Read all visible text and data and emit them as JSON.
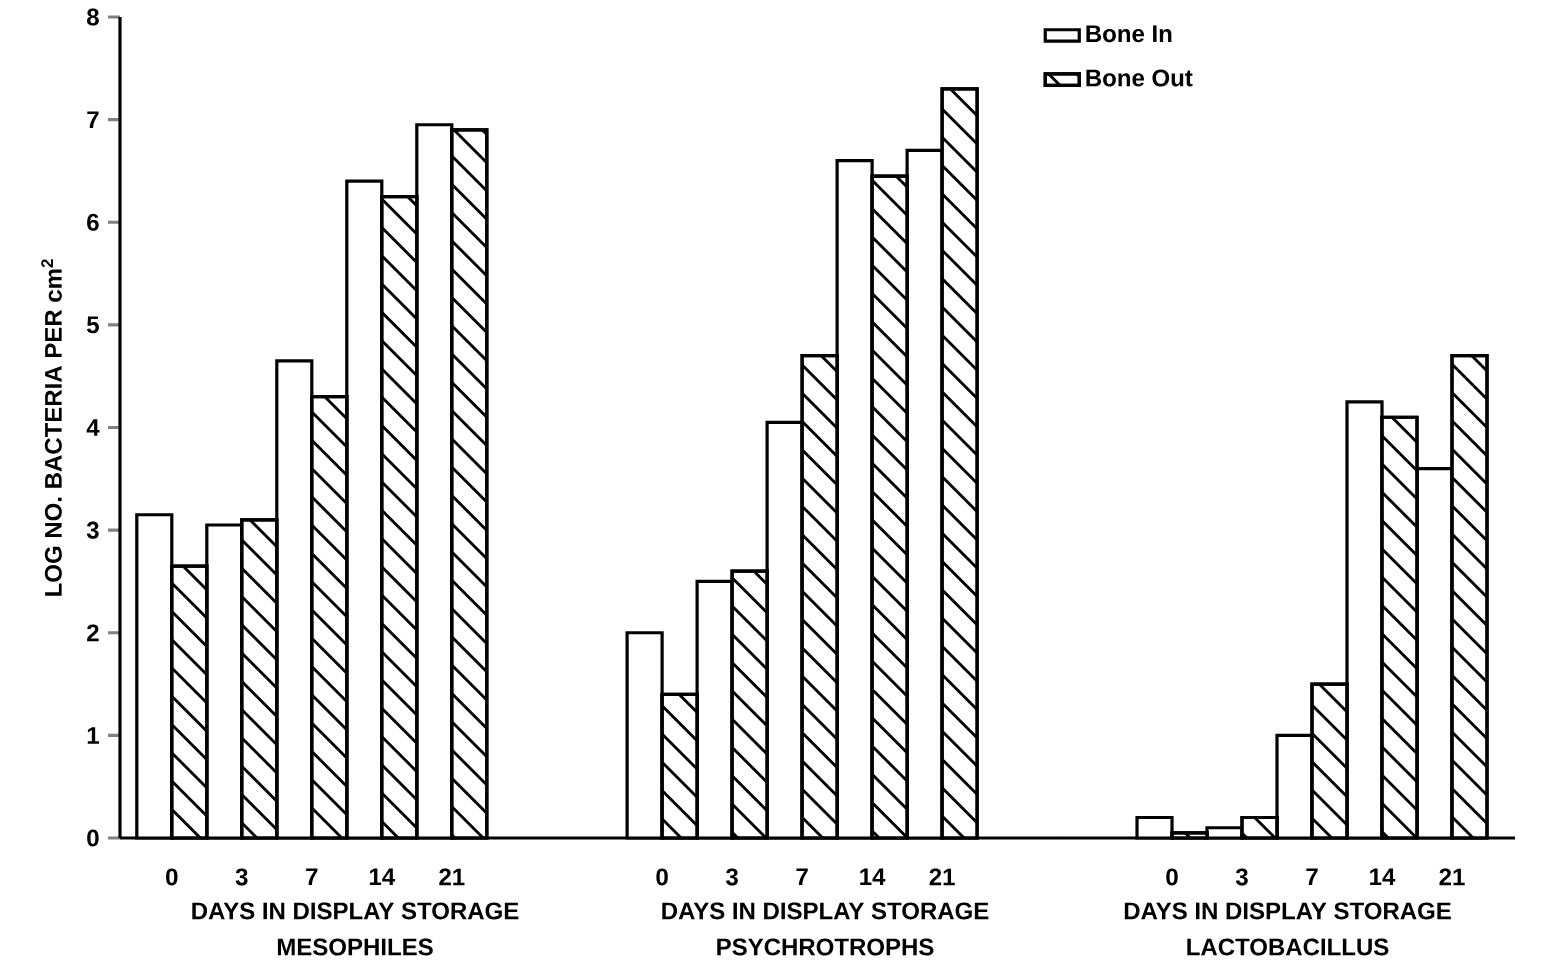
{
  "chart_data": [
    {
      "type": "bar",
      "title": "MESOPHILES",
      "xlabel": "DAYS IN DISPLAY STORAGE",
      "ylabel": "LOG NO. BACTERIA PER cm$^{2}$",
      "categories": [
        "0",
        "3",
        "7",
        "14",
        "21"
      ],
      "ylim": [
        0,
        8
      ],
      "yticks": [
        0,
        1,
        2,
        3,
        4,
        5,
        6,
        7,
        8
      ],
      "series": [
        {
          "color": "#ffffff",
          "values": [
            3.15,
            3.05,
            4.65,
            6.4,
            6.95
          ]
        },
        {
          "color": "#000000",
          "values": [
            2.65,
            3.1,
            4.3,
            6.25,
            6.9
          ]
        }
      ]
    },
    {
      "type": "bar",
      "title": "PSYCHROTROPHS",
      "xlabel": "DAYS IN DISPLAY STORAGE",
      "categories": [
        "0",
        "3",
        "7",
        "14",
        "21"
      ],
      "ylim": [
        0,
        8
      ],
      "tick_labels": "x",
      "series": [
        {
          "color": "#ffffff",
          "values": [
            2.0,
            2.5,
            4.05,
            6.6,
            6.7
          ]
        },
        {
          "color": "#000000",
          "values": [
            1.4,
            2.6,
            4.7,
            6.45,
            7.3
          ]
        }
      ]
    },
    {
      "type": "bar",
      "title": "LACTOBACILLUS",
      "xlabel": "DAYS IN DISPLAY STORAGE",
      "categories": [
        "0",
        "3",
        "7",
        "14",
        "21"
      ],
      "ylim": [
        0,
        8
      ],
      "tick_labels": "x",
      "legend": "top left",
      "series": [
        {
          "name": "Bone In",
          "color": "#ffffff",
          "values": [
            0.2,
            0.1,
            1.0,
            4.25,
            3.6
          ]
        },
        {
          "name": "Bone Out",
          "color": "#000000",
          "values": [
            0.05,
            0.2,
            1.5,
            4.1,
            4.7
          ]
        }
      ]
    }
  ]
}
